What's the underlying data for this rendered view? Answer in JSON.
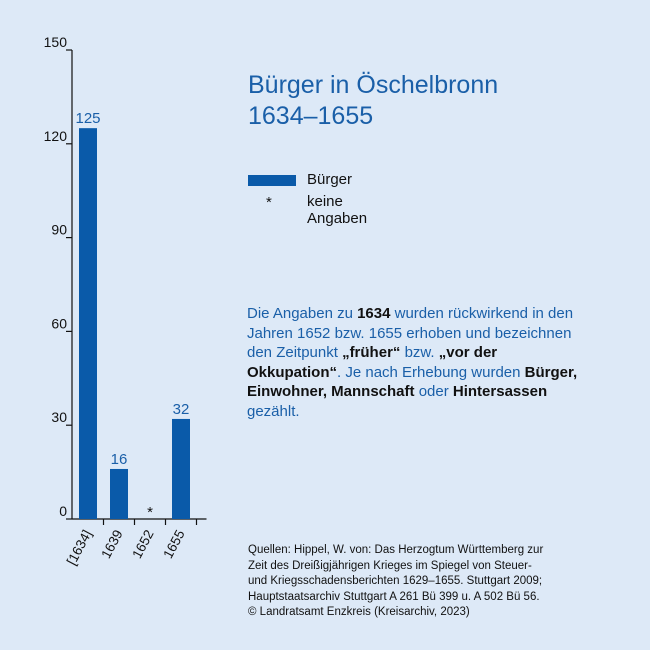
{
  "title_line1": "Bürger in Öschelbronn",
  "title_line2": "1634–1655",
  "legend": {
    "bar_label": "Bürger",
    "star_symbol": "*",
    "star_label": "keine Angaben"
  },
  "note": {
    "t1": "Die Angaben zu ",
    "b1": "1634",
    "t2": " wurden rückwirkend in den Jahren 1652 bzw. 1655 erhoben und bezeichnen den Zeitpunkt ",
    "b2": "„früher“",
    "t3": " bzw. ",
    "b3": "„vor der Okkupation“",
    "t4": ". Je nach Erhebung wurden ",
    "b4": "Bürger, Einwohner, Mannschaft",
    "t5": " oder ",
    "b5": "Hintersassen",
    "t6": " gezählt."
  },
  "sources": {
    "line1": "Quellen: Hippel, W. von: Das Herzogtum Württemberg zur",
    "line2": "Zeit des Dreißigjährigen Krieges im Spiegel von Steuer-",
    "line3": "und Kriegsschadensberichten 1629–1655. Stuttgart 2009;",
    "line4": "Hauptstaatsarchiv Stuttgart A 261 Bü 399 u. A 502 Bü 56.",
    "line5": "© Landratsamt Enzkreis (Kreisarchiv, 2023)"
  },
  "colors": {
    "bar": "#0a5aa9",
    "value_label": "#1a5fa8",
    "background": "#dde9f7"
  },
  "chart_data": {
    "type": "bar",
    "categories": [
      "[1634]",
      "1639",
      "1652",
      "1655"
    ],
    "values": [
      125,
      16,
      null,
      32
    ],
    "value_labels": [
      "125",
      "16",
      "*",
      "32"
    ],
    "ylim": [
      0,
      150
    ],
    "yticks": [
      0,
      30,
      60,
      90,
      120,
      150
    ],
    "ytick_labels": [
      "0",
      "30",
      "60",
      "90",
      "120",
      "150"
    ],
    "grid": false,
    "legend_position": "right"
  }
}
